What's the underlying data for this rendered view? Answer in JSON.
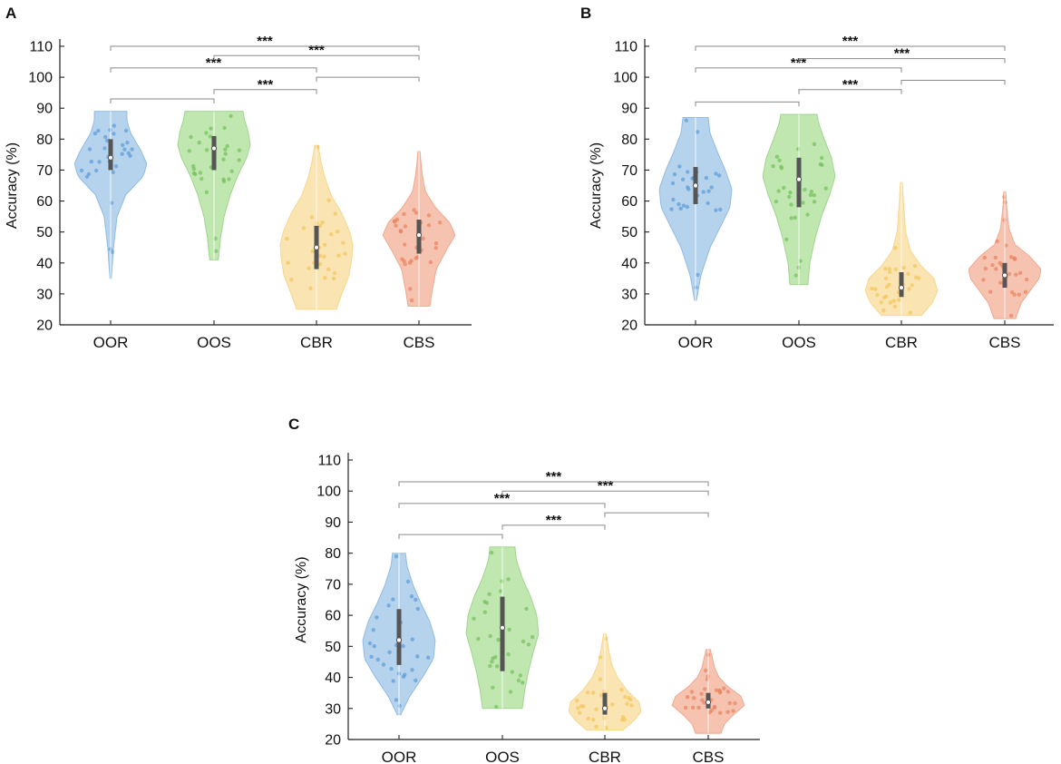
{
  "chart_data": [
    {
      "type": "violin",
      "panel": "A",
      "ylabel": "Accuracy (%)",
      "ylim": [
        20,
        110
      ],
      "yticks": [
        20,
        30,
        40,
        50,
        60,
        70,
        80,
        90,
        100,
        110
      ],
      "categories": [
        "OOR",
        "OOS",
        "CBR",
        "CBS"
      ],
      "colors": [
        "#a9cbea",
        "#b6e3a2",
        "#f9dfa3",
        "#f4b9a3"
      ],
      "point_colors": [
        "#5b9bd5",
        "#70c05a",
        "#f2c55c",
        "#e8825e"
      ],
      "series": [
        {
          "name": "OOR",
          "min": 35,
          "max": 89,
          "q1": 70,
          "median": 74,
          "q3": 80,
          "profile": [
            [
              35,
              0.02
            ],
            [
              45,
              0.08
            ],
            [
              55,
              0.18
            ],
            [
              62,
              0.42
            ],
            [
              68,
              0.9
            ],
            [
              72,
              1.0
            ],
            [
              76,
              0.85
            ],
            [
              82,
              0.55
            ],
            [
              86,
              0.45
            ],
            [
              89,
              0.45
            ]
          ]
        },
        {
          "name": "OOS",
          "min": 41,
          "max": 89,
          "q1": 70,
          "median": 77,
          "q3": 81,
          "profile": [
            [
              41,
              0.12
            ],
            [
              48,
              0.18
            ],
            [
              55,
              0.28
            ],
            [
              62,
              0.45
            ],
            [
              68,
              0.65
            ],
            [
              74,
              0.9
            ],
            [
              78,
              1.0
            ],
            [
              82,
              0.95
            ],
            [
              86,
              0.85
            ],
            [
              89,
              0.8
            ]
          ]
        },
        {
          "name": "CBR",
          "min": 25,
          "max": 78,
          "q1": 38,
          "median": 45,
          "q3": 52,
          "profile": [
            [
              25,
              0.55
            ],
            [
              30,
              0.7
            ],
            [
              36,
              0.9
            ],
            [
              42,
              0.98
            ],
            [
              46,
              1.0
            ],
            [
              50,
              0.92
            ],
            [
              56,
              0.7
            ],
            [
              62,
              0.4
            ],
            [
              68,
              0.22
            ],
            [
              73,
              0.12
            ],
            [
              78,
              0.05
            ]
          ]
        },
        {
          "name": "CBS",
          "min": 26,
          "max": 76,
          "q1": 43,
          "median": 49,
          "q3": 54,
          "profile": [
            [
              26,
              0.3
            ],
            [
              32,
              0.38
            ],
            [
              38,
              0.48
            ],
            [
              44,
              0.75
            ],
            [
              49,
              1.0
            ],
            [
              53,
              0.85
            ],
            [
              58,
              0.45
            ],
            [
              63,
              0.18
            ],
            [
              68,
              0.1
            ],
            [
              72,
              0.06
            ],
            [
              76,
              0.03
            ]
          ]
        }
      ],
      "significance": [
        {
          "from": "OOR",
          "to": "OOS",
          "level": 93,
          "label": ""
        },
        {
          "from": "OOS",
          "to": "CBR",
          "level": 96,
          "label": "***"
        },
        {
          "from": "CBR",
          "to": "CBS",
          "level": 100,
          "label": ""
        },
        {
          "from": "OOR",
          "to": "CBR",
          "level": 103,
          "label": "***"
        },
        {
          "from": "OOS",
          "to": "CBS",
          "level": 107,
          "label": "***"
        },
        {
          "from": "OOR",
          "to": "CBS",
          "level": 110,
          "label": "***"
        }
      ]
    },
    {
      "type": "violin",
      "panel": "B",
      "ylabel": "Accuracy (%)",
      "ylim": [
        20,
        110
      ],
      "yticks": [
        20,
        30,
        40,
        50,
        60,
        70,
        80,
        90,
        100,
        110
      ],
      "categories": [
        "OOR",
        "OOS",
        "CBR",
        "CBS"
      ],
      "colors": [
        "#a9cbea",
        "#b6e3a2",
        "#f9dfa3",
        "#f4b9a3"
      ],
      "point_colors": [
        "#5b9bd5",
        "#70c05a",
        "#f2c55c",
        "#e8825e"
      ],
      "series": [
        {
          "name": "OOR",
          "min": 28,
          "max": 87,
          "q1": 59,
          "median": 65,
          "q3": 71,
          "profile": [
            [
              28,
              0.03
            ],
            [
              36,
              0.15
            ],
            [
              45,
              0.4
            ],
            [
              52,
              0.7
            ],
            [
              58,
              0.95
            ],
            [
              64,
              1.0
            ],
            [
              70,
              0.82
            ],
            [
              76,
              0.6
            ],
            [
              82,
              0.4
            ],
            [
              87,
              0.35
            ]
          ]
        },
        {
          "name": "OOS",
          "min": 33,
          "max": 88,
          "q1": 58,
          "median": 67,
          "q3": 74,
          "profile": [
            [
              33,
              0.25
            ],
            [
              40,
              0.3
            ],
            [
              48,
              0.45
            ],
            [
              55,
              0.62
            ],
            [
              62,
              0.85
            ],
            [
              68,
              1.0
            ],
            [
              74,
              0.9
            ],
            [
              80,
              0.7
            ],
            [
              85,
              0.55
            ],
            [
              88,
              0.5
            ]
          ]
        },
        {
          "name": "CBR",
          "min": 23,
          "max": 66,
          "q1": 29,
          "median": 32,
          "q3": 37,
          "profile": [
            [
              23,
              0.55
            ],
            [
              27,
              0.85
            ],
            [
              31,
              1.0
            ],
            [
              35,
              0.9
            ],
            [
              39,
              0.55
            ],
            [
              44,
              0.25
            ],
            [
              50,
              0.12
            ],
            [
              56,
              0.08
            ],
            [
              61,
              0.05
            ],
            [
              66,
              0.03
            ]
          ]
        },
        {
          "name": "CBS",
          "min": 22,
          "max": 63,
          "q1": 32,
          "median": 36,
          "q3": 40,
          "profile": [
            [
              22,
              0.3
            ],
            [
              27,
              0.45
            ],
            [
              31,
              0.7
            ],
            [
              35,
              0.95
            ],
            [
              38,
              1.0
            ],
            [
              42,
              0.7
            ],
            [
              46,
              0.28
            ],
            [
              51,
              0.12
            ],
            [
              56,
              0.07
            ],
            [
              60,
              0.04
            ],
            [
              63,
              0.03
            ]
          ]
        }
      ],
      "significance": [
        {
          "from": "OOR",
          "to": "OOS",
          "level": 92,
          "label": ""
        },
        {
          "from": "OOS",
          "to": "CBR",
          "level": 96,
          "label": "***"
        },
        {
          "from": "CBR",
          "to": "CBS",
          "level": 99,
          "label": ""
        },
        {
          "from": "OOR",
          "to": "CBR",
          "level": 103,
          "label": "***"
        },
        {
          "from": "OOS",
          "to": "CBS",
          "level": 106,
          "label": "***"
        },
        {
          "from": "OOR",
          "to": "CBS",
          "level": 110,
          "label": "***"
        }
      ]
    },
    {
      "type": "violin",
      "panel": "C",
      "ylabel": "Accuracy (%)",
      "ylim": [
        20,
        110
      ],
      "yticks": [
        20,
        30,
        40,
        50,
        60,
        70,
        80,
        90,
        100,
        110
      ],
      "categories": [
        "OOR",
        "OOS",
        "CBR",
        "CBS"
      ],
      "colors": [
        "#a9cbea",
        "#b6e3a2",
        "#f9dfa3",
        "#f4b9a3"
      ],
      "point_colors": [
        "#5b9bd5",
        "#70c05a",
        "#f2c55c",
        "#e8825e"
      ],
      "series": [
        {
          "name": "OOR",
          "min": 28,
          "max": 80,
          "q1": 44,
          "median": 52,
          "q3": 62,
          "profile": [
            [
              28,
              0.05
            ],
            [
              34,
              0.3
            ],
            [
              40,
              0.65
            ],
            [
              46,
              0.95
            ],
            [
              52,
              1.0
            ],
            [
              58,
              0.85
            ],
            [
              64,
              0.6
            ],
            [
              70,
              0.38
            ],
            [
              76,
              0.22
            ],
            [
              80,
              0.18
            ]
          ]
        },
        {
          "name": "OOS",
          "min": 30,
          "max": 82,
          "q1": 42,
          "median": 56,
          "q3": 66,
          "profile": [
            [
              30,
              0.55
            ],
            [
              36,
              0.62
            ],
            [
              42,
              0.72
            ],
            [
              48,
              0.85
            ],
            [
              54,
              1.0
            ],
            [
              60,
              0.95
            ],
            [
              66,
              0.78
            ],
            [
              72,
              0.55
            ],
            [
              78,
              0.38
            ],
            [
              82,
              0.35
            ]
          ]
        },
        {
          "name": "CBR",
          "min": 23,
          "max": 54,
          "q1": 28,
          "median": 30,
          "q3": 35,
          "profile": [
            [
              23,
              0.5
            ],
            [
              26,
              0.8
            ],
            [
              29,
              1.0
            ],
            [
              32,
              0.95
            ],
            [
              36,
              0.6
            ],
            [
              40,
              0.35
            ],
            [
              44,
              0.2
            ],
            [
              48,
              0.12
            ],
            [
              51,
              0.08
            ],
            [
              54,
              0.04
            ]
          ]
        },
        {
          "name": "CBS",
          "min": 22,
          "max": 49,
          "q1": 30,
          "median": 32,
          "q3": 35,
          "profile": [
            [
              22,
              0.35
            ],
            [
              25,
              0.45
            ],
            [
              28,
              0.7
            ],
            [
              31,
              1.0
            ],
            [
              34,
              0.9
            ],
            [
              37,
              0.55
            ],
            [
              40,
              0.3
            ],
            [
              43,
              0.18
            ],
            [
              46,
              0.12
            ],
            [
              49,
              0.06
            ]
          ]
        }
      ],
      "significance": [
        {
          "from": "OOR",
          "to": "OOS",
          "level": 86,
          "label": ""
        },
        {
          "from": "OOS",
          "to": "CBR",
          "level": 89,
          "label": "***"
        },
        {
          "from": "CBR",
          "to": "CBS",
          "level": 93,
          "label": ""
        },
        {
          "from": "OOR",
          "to": "CBR",
          "level": 96,
          "label": "***"
        },
        {
          "from": "OOS",
          "to": "CBS",
          "level": 100,
          "label": "***"
        },
        {
          "from": "OOR",
          "to": "CBS",
          "level": 103,
          "label": "***"
        }
      ]
    }
  ]
}
